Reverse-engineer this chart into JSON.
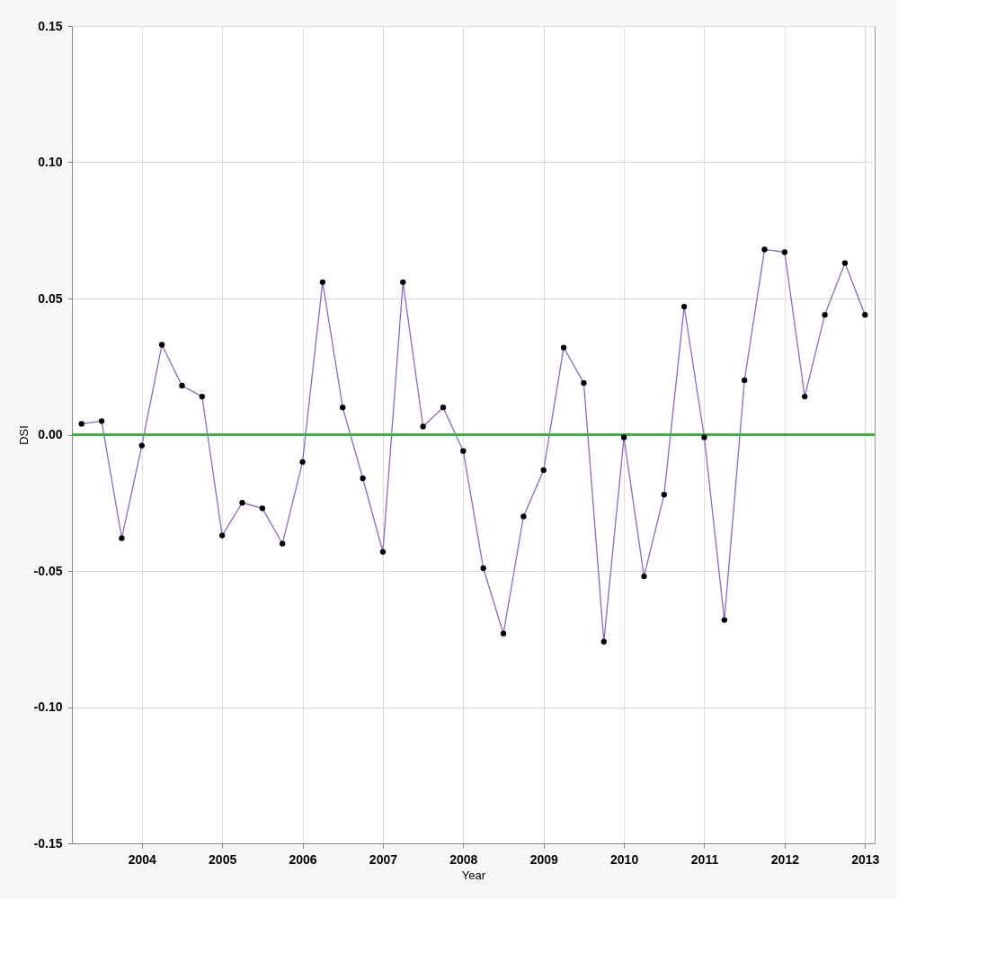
{
  "chart_data": {
    "type": "line",
    "xlabel": "Year",
    "ylabel": "DSI",
    "x": [
      2003.25,
      2003.5,
      2003.75,
      2004,
      2004.25,
      2004.5,
      2004.75,
      2005,
      2005.25,
      2005.5,
      2005.75,
      2006,
      2006.25,
      2006.5,
      2006.75,
      2007,
      2007.25,
      2007.5,
      2007.75,
      2008,
      2008.25,
      2008.5,
      2008.75,
      2009,
      2009.25,
      2009.5,
      2009.75,
      2010,
      2010.25,
      2010.5,
      2010.75,
      2011,
      2011.25,
      2011.5,
      2011.75,
      2012,
      2012.25,
      2012.5,
      2012.75,
      2013
    ],
    "series": [
      {
        "color": "#8a6bbf",
        "values": [
          0.004,
          0.005,
          -0.038,
          -0.004,
          0.033,
          0.018,
          0.014,
          -0.037,
          -0.025,
          -0.027,
          -0.04,
          -0.01,
          0.056,
          0.01,
          -0.016,
          -0.043,
          0.056,
          0.003,
          0.01,
          -0.006,
          -0.049,
          -0.073,
          -0.03,
          -0.013,
          0.032,
          0.019,
          -0.076,
          -0.001,
          -0.052,
          -0.022,
          0.047,
          -0.001,
          -0.068,
          0.02,
          0.068,
          0.067,
          0.014,
          0.044,
          0.063,
          0.044
        ]
      }
    ],
    "xlim": [
      2003.13,
      2013.12
    ],
    "xticks": [
      2004,
      2005,
      2006,
      2007,
      2008,
      2009,
      2010,
      2011,
      2012,
      2013
    ],
    "ylim": [
      -0.15,
      0.15
    ],
    "yticks": [
      {
        "value": -0.15,
        "label": "-0.15"
      },
      {
        "value": -0.1,
        "label": "-0.10"
      },
      {
        "value": -0.05,
        "label": "-0.05"
      },
      {
        "value": 0,
        "label": "0.00"
      },
      {
        "value": 0.05,
        "label": "0.05"
      },
      {
        "value": 0.1,
        "label": "0.10"
      },
      {
        "value": 0.15,
        "label": "0.15"
      }
    ],
    "ref_lines": [
      {
        "axis": "y",
        "value": 0,
        "color": "#3cb043"
      }
    ],
    "grid": true,
    "marker": "circle",
    "line_style": "solid"
  }
}
